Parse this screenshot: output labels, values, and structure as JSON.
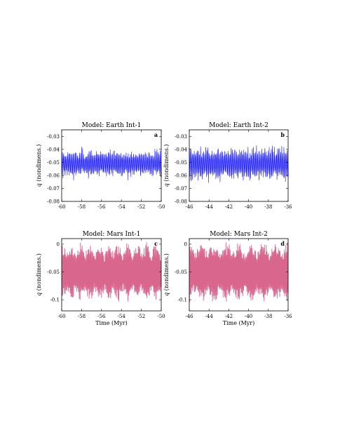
{
  "chart_data": [
    {
      "type": "line",
      "panel": "a",
      "title": "Model: Earth Int-1",
      "xlabel": "",
      "ylabel_symbol": "q",
      "ylabel": "(nondimens.)",
      "xlim": [
        -60,
        -50
      ],
      "ylim": [
        -0.08,
        -0.025
      ],
      "xticks": [
        "-60",
        "-58",
        "-56",
        "-54",
        "-52",
        "-50"
      ],
      "xtick_values": [
        -60,
        -58,
        -56,
        -54,
        -52,
        -50
      ],
      "yticks": [
        "-0.08",
        "-0.07",
        "-0.06",
        "-0.05",
        "-0.04",
        "-0.03"
      ],
      "ytick_values": [
        -0.08,
        -0.07,
        -0.06,
        -0.05,
        -0.04,
        -0.03
      ],
      "color": "#1a1aff",
      "series_summary": {
        "mean": -0.051,
        "min": -0.063,
        "max": -0.036
      }
    },
    {
      "type": "line",
      "panel": "b",
      "title": "Model: Earth Int-2",
      "xlabel": "",
      "ylabel_symbol": "q",
      "ylabel": "(nondimens.)",
      "xlim": [
        -46,
        -36
      ],
      "ylim": [
        -0.08,
        -0.025
      ],
      "xticks": [
        "-46",
        "-44",
        "-42",
        "-40",
        "-38",
        "-36"
      ],
      "xtick_values": [
        -46,
        -44,
        -42,
        -40,
        -38,
        -36
      ],
      "yticks": [
        "-0.08",
        "-0.07",
        "-0.06",
        "-0.05",
        "-0.04",
        "-0.03"
      ],
      "ytick_values": [
        -0.08,
        -0.07,
        -0.06,
        -0.05,
        -0.04,
        -0.03
      ],
      "color": "#1a1aff",
      "series_summary": {
        "mean": -0.051,
        "min": -0.066,
        "max": -0.034
      }
    },
    {
      "type": "area",
      "panel": "c",
      "title": "Model: Mars Int-1",
      "xlabel": "Time (Myr)",
      "ylabel_symbol": "q",
      "ylabel": "(nondimens.)",
      "xlim": [
        -60,
        -50
      ],
      "ylim": [
        -0.12,
        0.01
      ],
      "xticks": [
        "-60",
        "-58",
        "-56",
        "-54",
        "-52",
        "-50"
      ],
      "xtick_values": [
        -60,
        -58,
        -56,
        -54,
        -52,
        -50
      ],
      "yticks": [
        "-0.1",
        "-0.05",
        "0"
      ],
      "ytick_values": [
        -0.1,
        -0.05,
        0
      ],
      "color": "#cc3366",
      "series_summary": {
        "mean": -0.05,
        "min": -0.108,
        "max": 0.002
      }
    },
    {
      "type": "area",
      "panel": "d",
      "title": "Model: Mars Int-2",
      "xlabel": "Time (Myr)",
      "ylabel_symbol": "q",
      "ylabel": "(nondimens.)",
      "xlim": [
        -46,
        -36
      ],
      "ylim": [
        -0.12,
        0.01
      ],
      "xticks": [
        "-46",
        "-44",
        "-42",
        "-40",
        "-38",
        "-36"
      ],
      "xtick_values": [
        -46,
        -44,
        -42,
        -40,
        -38,
        -36
      ],
      "yticks": [
        "-0.1",
        "-0.05",
        "0"
      ],
      "ytick_values": [
        -0.1,
        -0.05,
        0
      ],
      "color": "#cc3366",
      "series_summary": {
        "mean": -0.05,
        "min": -0.108,
        "max": 0.005
      }
    }
  ]
}
